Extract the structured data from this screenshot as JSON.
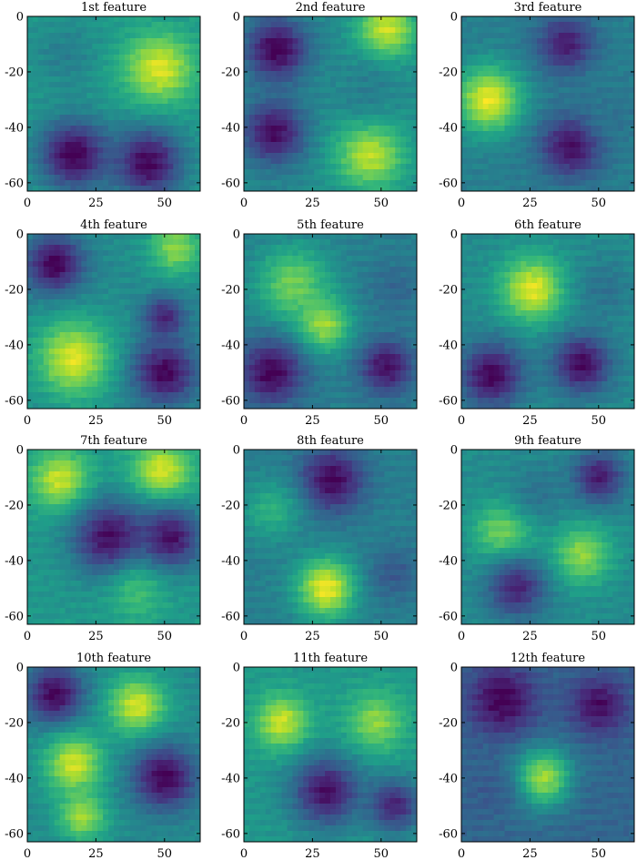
{
  "figure": {
    "background": "#ffffff",
    "colormap": "viridis"
  },
  "chart_data": [
    {
      "type": "heatmap",
      "title": "1st feature",
      "xticks": [
        "0",
        "25",
        "50"
      ],
      "yticks": [
        "0",
        "-20",
        "-40",
        "-60"
      ],
      "xlim": [
        0,
        63
      ],
      "ylim": [
        -63,
        0
      ],
      "blobs": [
        {
          "x": 14,
          "y": -14,
          "r": 12,
          "v": 0.45
        },
        {
          "x": 48,
          "y": -19,
          "r": 13,
          "v": 0.97
        },
        {
          "x": 17,
          "y": -50,
          "r": 13,
          "v": 0.02
        },
        {
          "x": 44,
          "y": -53,
          "r": 13,
          "v": 0.03
        }
      ],
      "base": 0.55
    },
    {
      "type": "heatmap",
      "title": "2nd feature",
      "xticks": [
        "0",
        "25",
        "50"
      ],
      "yticks": [
        "0",
        "-20",
        "-40",
        "-60"
      ],
      "xlim": [
        0,
        63
      ],
      "ylim": [
        -63,
        0
      ],
      "blobs": [
        {
          "x": 12,
          "y": -12,
          "r": 12,
          "v": 0.02
        },
        {
          "x": 52,
          "y": -5,
          "r": 11,
          "v": 0.95
        },
        {
          "x": 11,
          "y": -42,
          "r": 12,
          "v": 0.05
        },
        {
          "x": 46,
          "y": -50,
          "r": 13,
          "v": 0.92
        },
        {
          "x": 45,
          "y": -26,
          "r": 11,
          "v": 0.45
        }
      ],
      "base": 0.5
    },
    {
      "type": "heatmap",
      "title": "3rd feature",
      "xticks": [
        "0",
        "25",
        "50"
      ],
      "yticks": [
        "0",
        "-20",
        "-40",
        "-60"
      ],
      "xlim": [
        0,
        63
      ],
      "ylim": [
        -63,
        0
      ],
      "blobs": [
        {
          "x": 10,
          "y": -30,
          "r": 12,
          "v": 1.0
        },
        {
          "x": 38,
          "y": -10,
          "r": 11,
          "v": 0.1
        },
        {
          "x": 40,
          "y": -47,
          "r": 12,
          "v": 0.06
        },
        {
          "x": 56,
          "y": -34,
          "r": 10,
          "v": 0.4
        }
      ],
      "base": 0.45
    },
    {
      "type": "heatmap",
      "title": "4th feature",
      "xticks": [
        "0",
        "25",
        "50"
      ],
      "yticks": [
        "0",
        "-20",
        "-40",
        "-60"
      ],
      "xlim": [
        0,
        63
      ],
      "ylim": [
        -63,
        0
      ],
      "blobs": [
        {
          "x": 10,
          "y": -11,
          "r": 11,
          "v": 0.02
        },
        {
          "x": 17,
          "y": -45,
          "r": 14,
          "v": 0.97
        },
        {
          "x": 50,
          "y": -50,
          "r": 12,
          "v": 0.03
        },
        {
          "x": 50,
          "y": -30,
          "r": 8,
          "v": 0.12
        },
        {
          "x": 54,
          "y": -5,
          "r": 10,
          "v": 0.85
        }
      ],
      "base": 0.5
    },
    {
      "type": "heatmap",
      "title": "5th feature",
      "xticks": [
        "0",
        "25",
        "50"
      ],
      "yticks": [
        "0",
        "-20",
        "-40",
        "-60"
      ],
      "xlim": [
        0,
        63
      ],
      "ylim": [
        -63,
        0
      ],
      "blobs": [
        {
          "x": 18,
          "y": -18,
          "r": 14,
          "v": 0.8
        },
        {
          "x": 29,
          "y": -33,
          "r": 10,
          "v": 0.88
        },
        {
          "x": 10,
          "y": -50,
          "r": 12,
          "v": 0.02
        },
        {
          "x": 52,
          "y": -48,
          "r": 10,
          "v": 0.05
        },
        {
          "x": 55,
          "y": -20,
          "r": 10,
          "v": 0.35
        }
      ],
      "base": 0.45
    },
    {
      "type": "heatmap",
      "title": "6th feature",
      "xticks": [
        "0",
        "25",
        "50"
      ],
      "yticks": [
        "0",
        "-20",
        "-40",
        "-60"
      ],
      "xlim": [
        0,
        63
      ],
      "ylim": [
        -63,
        0
      ],
      "blobs": [
        {
          "x": 26,
          "y": -20,
          "r": 12,
          "v": 0.98
        },
        {
          "x": 52,
          "y": -20,
          "r": 11,
          "v": 0.4
        },
        {
          "x": 11,
          "y": -51,
          "r": 12,
          "v": 0.03
        },
        {
          "x": 44,
          "y": -47,
          "r": 11,
          "v": 0.04
        }
      ],
      "base": 0.5
    },
    {
      "type": "heatmap",
      "title": "7th feature",
      "xticks": [
        "0",
        "25",
        "50"
      ],
      "yticks": [
        "0",
        "-20",
        "-40",
        "-60"
      ],
      "xlim": [
        0,
        63
      ],
      "ylim": [
        -63,
        0
      ],
      "blobs": [
        {
          "x": 12,
          "y": -11,
          "r": 11,
          "v": 0.95
        },
        {
          "x": 49,
          "y": -8,
          "r": 11,
          "v": 0.98
        },
        {
          "x": 30,
          "y": -32,
          "r": 14,
          "v": 0.05
        },
        {
          "x": 52,
          "y": -32,
          "r": 12,
          "v": 0.06
        },
        {
          "x": 40,
          "y": -52,
          "r": 11,
          "v": 0.7
        }
      ],
      "base": 0.55
    },
    {
      "type": "heatmap",
      "title": "8th feature",
      "xticks": [
        "0",
        "25",
        "50"
      ],
      "yticks": [
        "0",
        "-20",
        "-40",
        "-60"
      ],
      "xlim": [
        0,
        63
      ],
      "ylim": [
        -63,
        0
      ],
      "blobs": [
        {
          "x": 32,
          "y": -11,
          "r": 12,
          "v": 0.03
        },
        {
          "x": 30,
          "y": -50,
          "r": 11,
          "v": 1.0
        },
        {
          "x": 10,
          "y": -22,
          "r": 11,
          "v": 0.65
        },
        {
          "x": 55,
          "y": -45,
          "r": 10,
          "v": 0.3
        }
      ],
      "base": 0.45
    },
    {
      "type": "heatmap",
      "title": "9th feature",
      "xticks": [
        "0",
        "25",
        "50"
      ],
      "yticks": [
        "0",
        "-20",
        "-40",
        "-60"
      ],
      "xlim": [
        0,
        63
      ],
      "ylim": [
        -63,
        0
      ],
      "blobs": [
        {
          "x": 50,
          "y": -10,
          "r": 10,
          "v": 0.1
        },
        {
          "x": 15,
          "y": -30,
          "r": 11,
          "v": 0.82
        },
        {
          "x": 44,
          "y": -38,
          "r": 11,
          "v": 0.85
        },
        {
          "x": 20,
          "y": -50,
          "r": 11,
          "v": 0.12
        },
        {
          "x": 28,
          "y": -15,
          "r": 10,
          "v": 0.4
        }
      ],
      "base": 0.5
    },
    {
      "type": "heatmap",
      "title": "10th feature",
      "xticks": [
        "0",
        "25",
        "50"
      ],
      "yticks": [
        "0",
        "-20",
        "-40",
        "-60"
      ],
      "xlim": [
        0,
        63
      ],
      "ylim": [
        -63,
        0
      ],
      "blobs": [
        {
          "x": 10,
          "y": -10,
          "r": 11,
          "v": 0.03
        },
        {
          "x": 40,
          "y": -14,
          "r": 11,
          "v": 0.95
        },
        {
          "x": 17,
          "y": -35,
          "r": 11,
          "v": 0.95
        },
        {
          "x": 20,
          "y": -54,
          "r": 9,
          "v": 0.88
        },
        {
          "x": 50,
          "y": -40,
          "r": 12,
          "v": 0.02
        }
      ],
      "base": 0.5
    },
    {
      "type": "heatmap",
      "title": "11th feature",
      "xticks": [
        "0",
        "25",
        "50"
      ],
      "yticks": [
        "0",
        "-20",
        "-40",
        "-60"
      ],
      "xlim": [
        0,
        63
      ],
      "ylim": [
        -63,
        0
      ],
      "blobs": [
        {
          "x": 14,
          "y": -20,
          "r": 10,
          "v": 0.95
        },
        {
          "x": 48,
          "y": -20,
          "r": 11,
          "v": 0.85
        },
        {
          "x": 30,
          "y": -45,
          "r": 13,
          "v": 0.06
        },
        {
          "x": 55,
          "y": -50,
          "r": 10,
          "v": 0.12
        }
      ],
      "base": 0.55
    },
    {
      "type": "heatmap",
      "title": "12th feature",
      "xticks": [
        "0",
        "25",
        "50"
      ],
      "yticks": [
        "0",
        "-20",
        "-40",
        "-60"
      ],
      "xlim": [
        0,
        63
      ],
      "ylim": [
        -63,
        0
      ],
      "blobs": [
        {
          "x": 15,
          "y": -12,
          "r": 13,
          "v": 0.02
        },
        {
          "x": 50,
          "y": -14,
          "r": 11,
          "v": 0.05
        },
        {
          "x": 30,
          "y": -40,
          "r": 11,
          "v": 0.88
        },
        {
          "x": 52,
          "y": -46,
          "r": 10,
          "v": 0.35
        },
        {
          "x": 10,
          "y": -45,
          "r": 10,
          "v": 0.3
        }
      ],
      "base": 0.35
    }
  ]
}
